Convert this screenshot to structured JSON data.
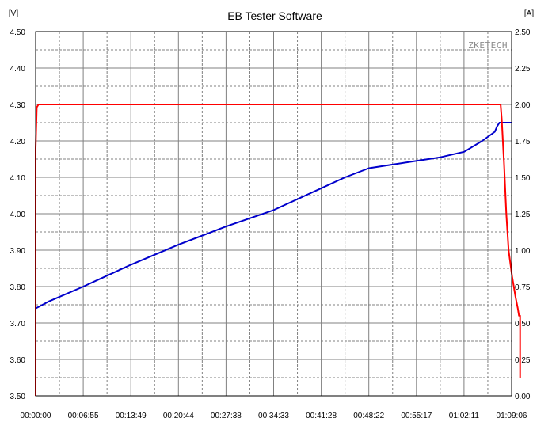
{
  "chart_data": {
    "type": "line",
    "title": "EB Tester Software",
    "watermark": "ZKETECH",
    "y_left_unit": "[V]",
    "y_right_unit": "[A]",
    "ylim_left": [
      3.5,
      4.5
    ],
    "ylim_right": [
      0,
      2.5
    ],
    "y_left_ticks": [
      "4.50",
      "4.40",
      "4.30",
      "4.20",
      "4.10",
      "4.00",
      "3.90",
      "3.80",
      "3.70",
      "3.60",
      "3.50"
    ],
    "y_right_ticks": [
      "2.50",
      "2.25",
      "2.00",
      "1.75",
      "1.50",
      "1.25",
      "1.00",
      "0.75",
      "0.50",
      "0.25",
      "0.00"
    ],
    "x_ticks": [
      "00:00:00",
      "00:06:55",
      "00:13:49",
      "00:20:44",
      "00:27:38",
      "00:34:33",
      "00:41:28",
      "00:48:22",
      "00:55:17",
      "01:02:11",
      "01:09:06"
    ],
    "xlim_seconds": [
      0,
      4146
    ],
    "grid": true,
    "series": [
      {
        "axis": "left",
        "color": "#0000cc",
        "x": [
          0,
          120,
          415,
          830,
          1244,
          1659,
          2073,
          2280,
          2488,
          2695,
          2903,
          3110,
          3318,
          3525,
          3732,
          3890,
          4000,
          4020,
          4040,
          4146
        ],
        "y": [
          3.74,
          3.76,
          3.8,
          3.86,
          3.915,
          3.965,
          4.01,
          4.04,
          4.07,
          4.1,
          4.125,
          4.135,
          4.145,
          4.155,
          4.17,
          4.2,
          4.225,
          4.24,
          4.25,
          4.25
        ]
      },
      {
        "axis": "right",
        "color": "#ff0000",
        "x": [
          0,
          0,
          10,
          25,
          4050,
          4060,
          4080,
          4100,
          4120,
          4150,
          4180,
          4200,
          4210,
          4220,
          4220,
          4220
        ],
        "y": [
          0.0,
          1.7,
          1.98,
          2.0,
          2.0,
          1.9,
          1.6,
          1.25,
          1.0,
          0.82,
          0.68,
          0.6,
          0.55,
          0.55,
          0.3,
          0.12
        ]
      }
    ]
  }
}
